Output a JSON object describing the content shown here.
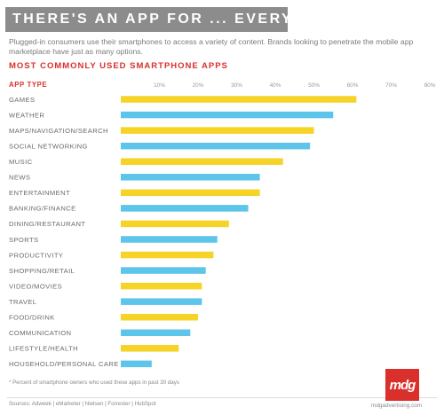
{
  "banner": {
    "title": "THERE'S AN APP FOR ... EVERYTHING"
  },
  "intro": "Plugged-in consumers use their smartphones to access a variety of content. Brands looking to penetrate the mobile app marketplace have just as many options.",
  "colors": {
    "accent": "#d9302c",
    "banner_bg": "#8c8c8c",
    "bar_yellow": "#f5d327",
    "bar_blue": "#5dc5ea"
  },
  "chart_data": {
    "type": "bar",
    "orientation": "horizontal",
    "title": "MOST COMMONLY USED SMARTPHONE APPS",
    "category_axis_title": "APP TYPE",
    "categories": [
      "GAMES",
      "WEATHER",
      "MAPS/NAVIGATION/SEARCH",
      "SOCIAL NETWORKING",
      "MUSIC",
      "NEWS",
      "ENTERTAINMENT",
      "BANKING/FINANCE",
      "DINING/RESTAURANT",
      "SPORTS",
      "PRODUCTIVITY",
      "SHOPPING/RETAIL",
      "VIDEO/MOVIES",
      "TRAVEL",
      "FOOD/DRINK",
      "COMMUNICATION",
      "LIFESTYLE/HEALTH",
      "HOUSEHOLD/PERSONAL CARE"
    ],
    "values": [
      61,
      55,
      50,
      49,
      42,
      36,
      36,
      33,
      28,
      25,
      24,
      22,
      21,
      21,
      20,
      18,
      15,
      8
    ],
    "bar_colors": [
      "yellow",
      "blue",
      "yellow",
      "blue",
      "yellow",
      "blue",
      "yellow",
      "blue",
      "yellow",
      "blue",
      "yellow",
      "blue",
      "yellow",
      "blue",
      "yellow",
      "blue",
      "yellow",
      "blue"
    ],
    "tick_labels": [
      "10%",
      "20%",
      "30%",
      "40%",
      "50%",
      "60%",
      "70%",
      "80%"
    ],
    "tick_values": [
      10,
      20,
      30,
      40,
      50,
      60,
      70,
      80
    ],
    "xlim": [
      0,
      80
    ],
    "grid": false,
    "legend": "none"
  },
  "footnote": "* Percent of smartphone owners who used these apps in past 30 days",
  "sources": "Sources: Adweek | eMarketer | Nielsen | Forrester | HubSpot",
  "logo": {
    "text": "mdg"
  },
  "site": "mdgadvertising.com"
}
